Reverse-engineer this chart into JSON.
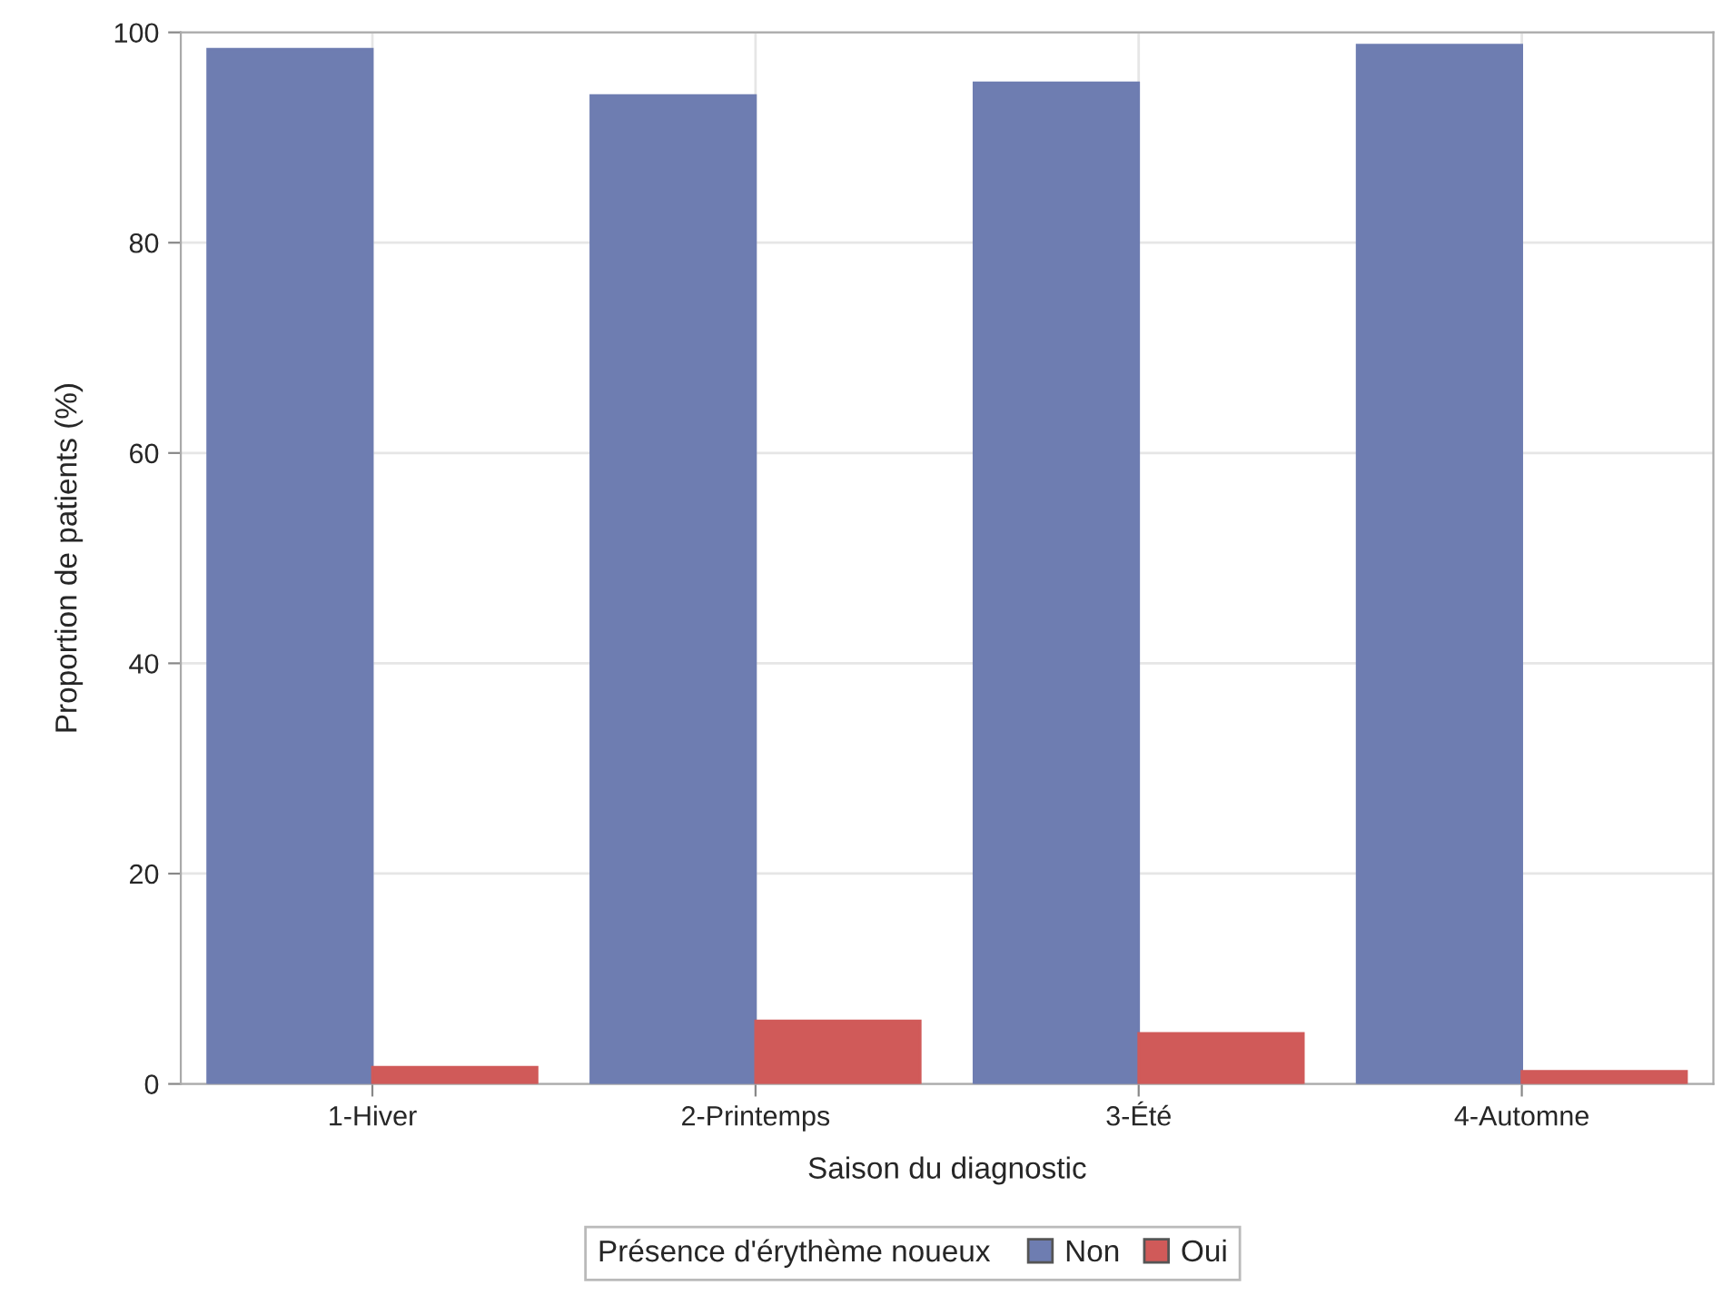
{
  "chart_data": {
    "type": "bar",
    "xlabel": "Saison du diagnostic",
    "ylabel": "Proportion de patients (%)",
    "legend_title": "Présence d'érythème noueux",
    "categories": [
      "1-Hiver",
      "2-Printemps",
      "3-Été",
      "4-Automne"
    ],
    "series": [
      {
        "name": "Non",
        "color": "#6e7db1",
        "values": [
          98.4,
          94.0,
          95.2,
          98.8
        ]
      },
      {
        "name": "Oui",
        "color": "#d05a59",
        "values": [
          1.6,
          6.0,
          4.8,
          1.2
        ]
      }
    ],
    "ylim": [
      0,
      100
    ],
    "yticks": [
      0,
      20,
      40,
      60,
      80,
      100
    ],
    "grid": true,
    "legend": "bottom"
  }
}
